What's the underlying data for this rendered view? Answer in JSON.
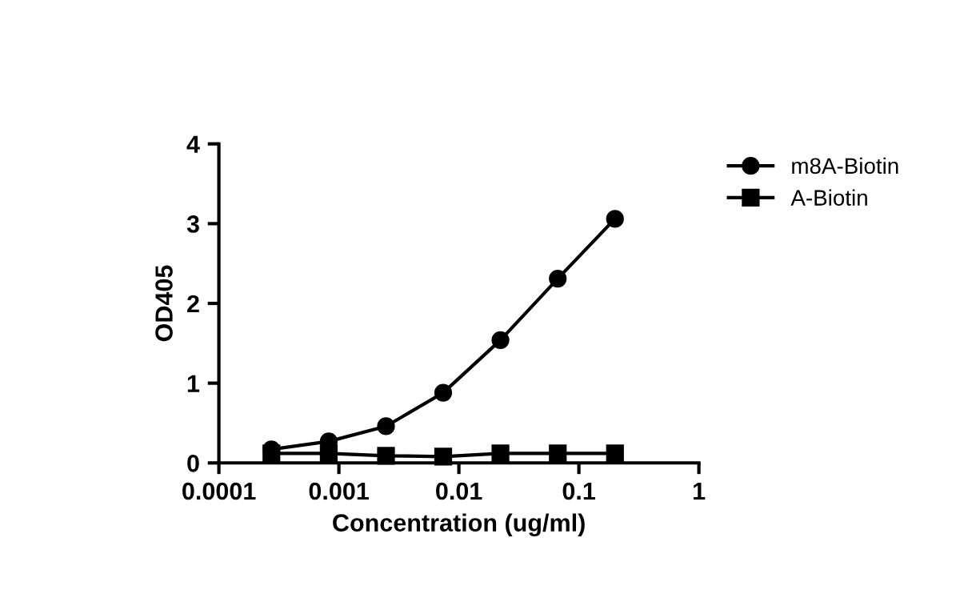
{
  "chart_data": {
    "type": "line",
    "xlabel": "Concentration (ug/ml)",
    "ylabel": "OD405",
    "x": [
      0.000274,
      0.000823,
      0.00247,
      0.0074,
      0.0222,
      0.0667,
      0.2
    ],
    "series": [
      {
        "name": "m8A-Biotin",
        "color": "#000000",
        "marker": "circle",
        "values": [
          0.17,
          0.27,
          0.46,
          0.88,
          1.54,
          2.31,
          3.06
        ]
      },
      {
        "name": "A-Biotin",
        "color": "#000000",
        "marker": "square",
        "values": [
          0.12,
          0.12,
          0.09,
          0.08,
          0.12,
          0.12,
          0.12
        ]
      }
    ],
    "log": "x",
    "xlim": [
      0.0001,
      1
    ],
    "xticks": [
      0.0001,
      0.001,
      0.01,
      0.1,
      1
    ],
    "ylim": [
      0,
      4
    ],
    "yticks": [
      0,
      1,
      2,
      3,
      4
    ],
    "grid": false,
    "legend": "top right",
    "line_style": "solid"
  }
}
